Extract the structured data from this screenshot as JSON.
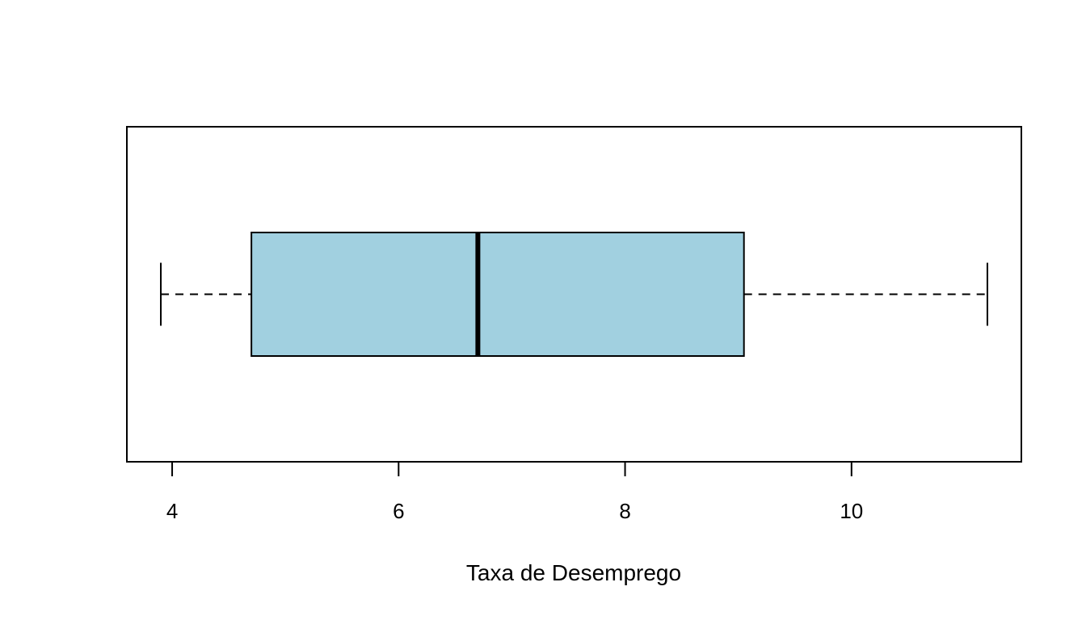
{
  "chart_data": {
    "type": "boxplot",
    "orientation": "horizontal",
    "title": "",
    "xlabel": "Taxa de Desemprego",
    "ylabel": "",
    "xlim": [
      3.6,
      11.5
    ],
    "x_ticks": [
      4,
      6,
      8,
      10
    ],
    "x_tick_labels": [
      "4",
      "6",
      "8",
      "10"
    ],
    "box": {
      "whisker_low": 3.9,
      "q1": 4.7,
      "median": 6.7,
      "q3": 9.05,
      "whisker_high": 11.2
    },
    "fill_color": "#a1d0e0",
    "line_color": "#000000",
    "grid": false
  }
}
